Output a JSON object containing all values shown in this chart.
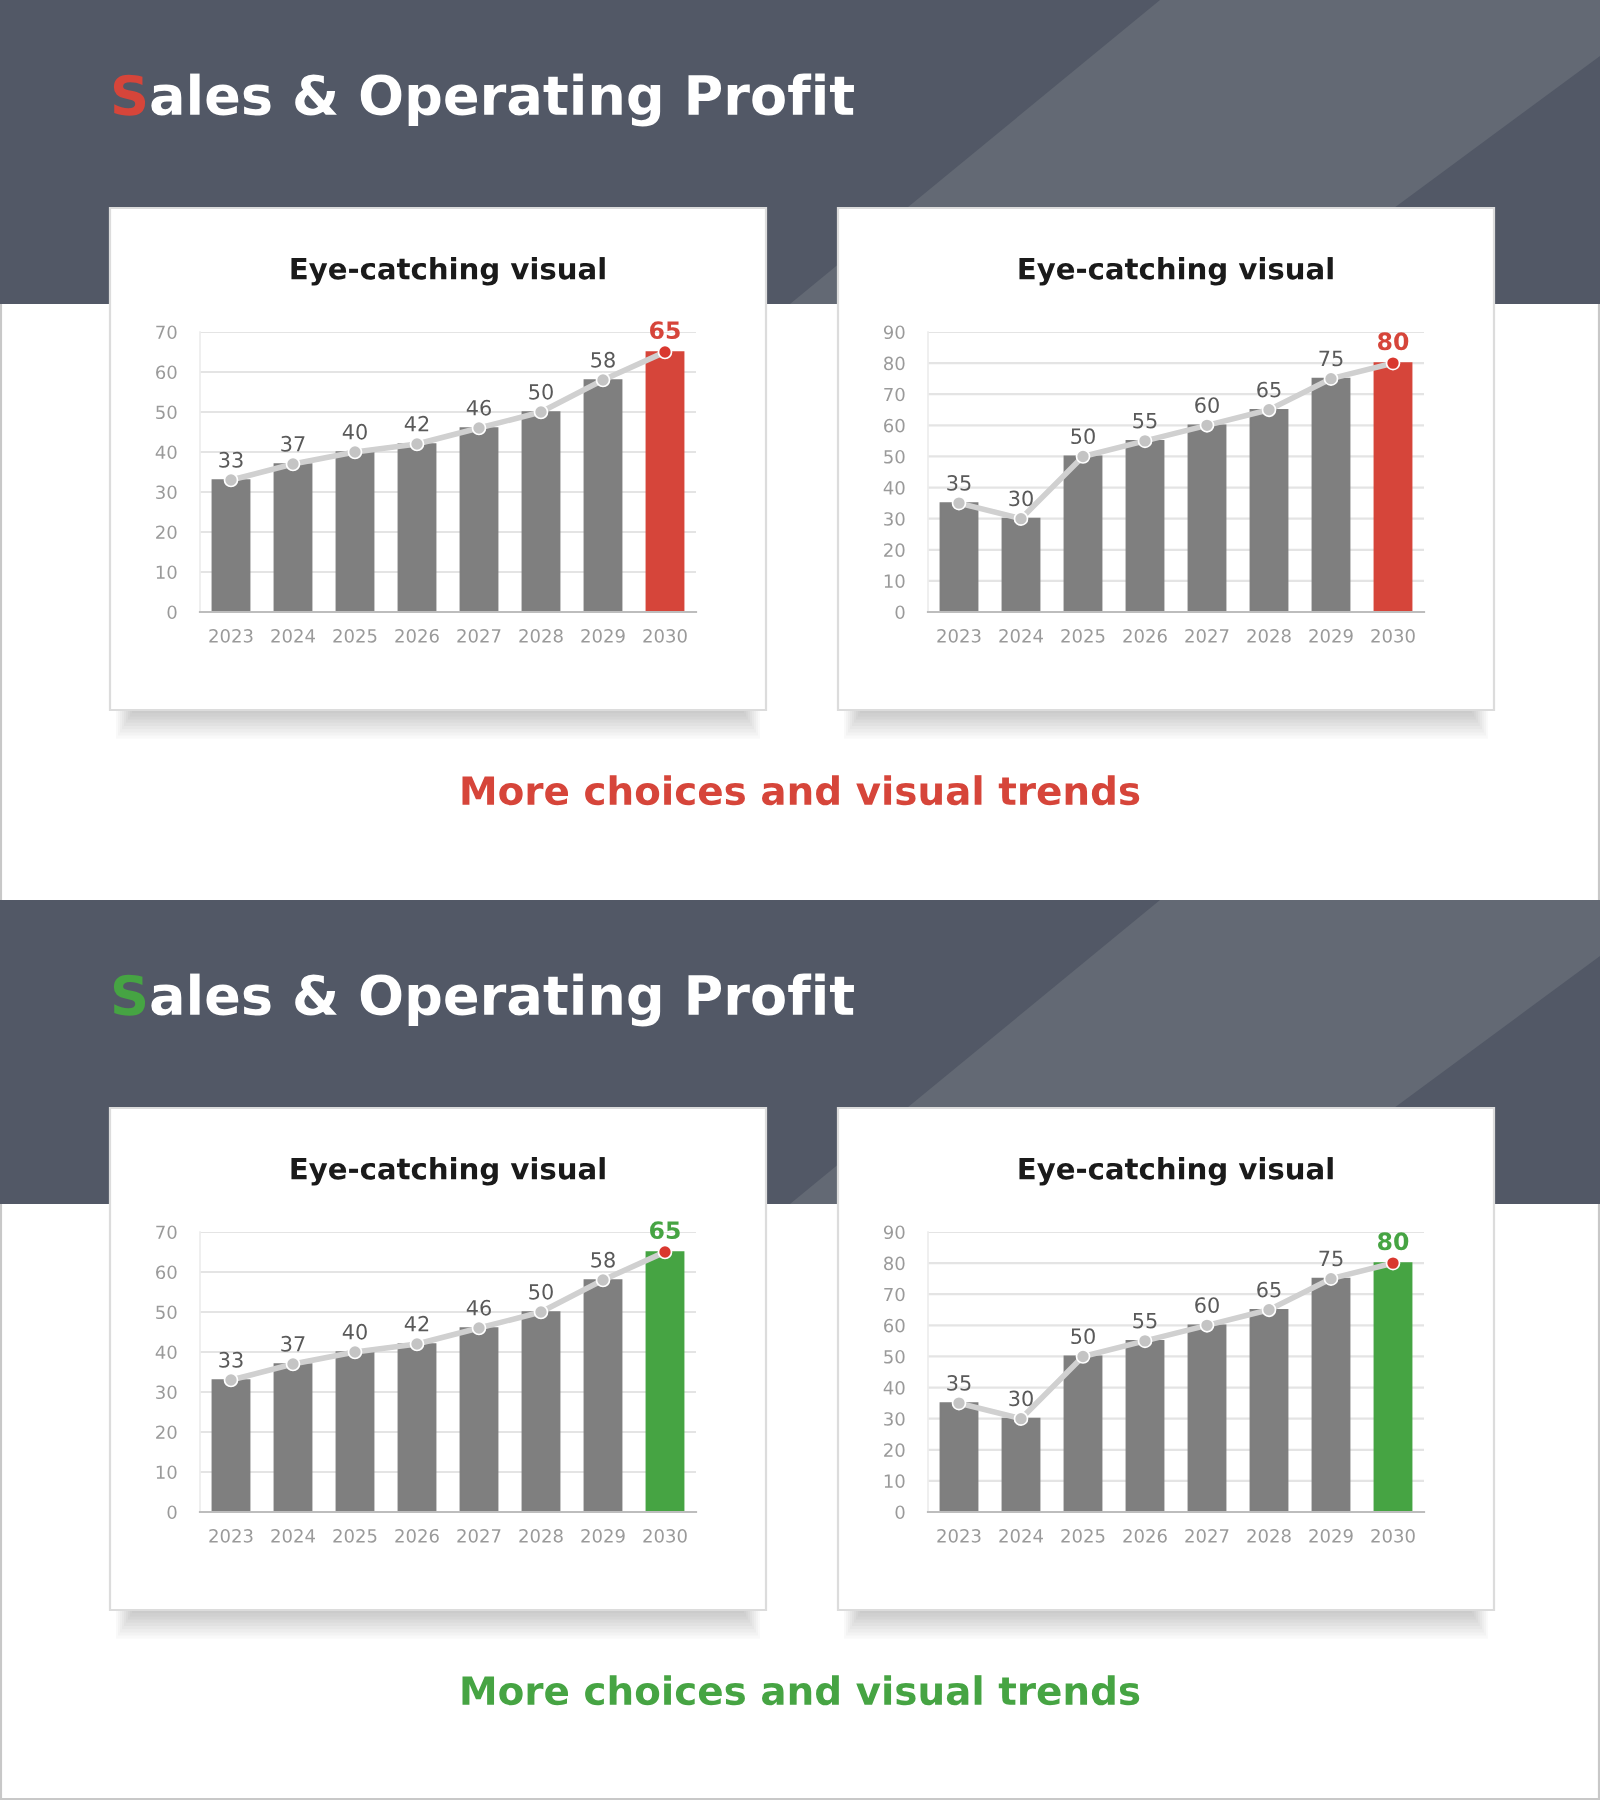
{
  "chart_data": [
    {
      "type": "bar",
      "title": "Eye-catching visual",
      "annotations": [
        "Sales & Operating Profit",
        "More choices and visual trends"
      ],
      "categories": [
        "2023",
        "2024",
        "2025",
        "2026",
        "2027",
        "2028",
        "2029",
        "2030"
      ],
      "series": [
        {
          "colors": [
            "#7f7f7f",
            "#7f7f7f",
            "#7f7f7f",
            "#7f7f7f",
            "#7f7f7f",
            "#7f7f7f",
            "#7f7f7f",
            "#d6453a"
          ],
          "values": [
            33,
            37,
            40,
            42,
            46,
            50,
            58,
            65
          ]
        },
        {
          "type": "line",
          "color": "#d0d0d0",
          "colors": [
            "#c4c4c4",
            "#c4c4c4",
            "#c4c4c4",
            "#c4c4c4",
            "#c4c4c4",
            "#c4c4c4",
            "#c4c4c4",
            "#d9382f"
          ],
          "values": [
            33,
            37,
            40,
            42,
            46,
            50,
            58,
            65
          ],
          "value_labels": [
            "33",
            "37",
            "40",
            "42",
            "46",
            "50",
            "58",
            "65"
          ]
        }
      ],
      "ylim": [
        0,
        70
      ],
      "yticks": [
        0,
        10,
        20,
        30,
        40,
        50,
        60,
        70
      ],
      "grid": "y",
      "marker": "circle"
    },
    {
      "type": "bar",
      "title": "Eye-catching visual",
      "categories": [
        "2023",
        "2024",
        "2025",
        "2026",
        "2027",
        "2028",
        "2029",
        "2030"
      ],
      "series": [
        {
          "colors": [
            "#7f7f7f",
            "#7f7f7f",
            "#7f7f7f",
            "#7f7f7f",
            "#7f7f7f",
            "#7f7f7f",
            "#7f7f7f",
            "#d6453a"
          ],
          "values": [
            35,
            30,
            50,
            55,
            60,
            65,
            75,
            80
          ]
        },
        {
          "type": "line",
          "color": "#d0d0d0",
          "colors": [
            "#c4c4c4",
            "#c4c4c4",
            "#c4c4c4",
            "#c4c4c4",
            "#c4c4c4",
            "#c4c4c4",
            "#c4c4c4",
            "#d9382f"
          ],
          "values": [
            35,
            30,
            50,
            55,
            60,
            65,
            75,
            80
          ],
          "value_labels": [
            "35",
            "30",
            "50",
            "55",
            "60",
            "65",
            "75",
            "80"
          ]
        }
      ],
      "ylim": [
        0,
        90
      ],
      "yticks": [
        0,
        10,
        20,
        30,
        40,
        50,
        60,
        70,
        80,
        90
      ],
      "grid": "y",
      "marker": "circle"
    },
    {
      "type": "bar",
      "title": "Eye-catching visual",
      "annotations": [
        "Sales & Operating Profit",
        "More choices and visual trends"
      ],
      "categories": [
        "2023",
        "2024",
        "2025",
        "2026",
        "2027",
        "2028",
        "2029",
        "2030"
      ],
      "series": [
        {
          "colors": [
            "#7f7f7f",
            "#7f7f7f",
            "#7f7f7f",
            "#7f7f7f",
            "#7f7f7f",
            "#7f7f7f",
            "#7f7f7f",
            "#46a443"
          ],
          "values": [
            33,
            37,
            40,
            42,
            46,
            50,
            58,
            65
          ]
        },
        {
          "type": "line",
          "color": "#d0d0d0",
          "colors": [
            "#c4c4c4",
            "#c4c4c4",
            "#c4c4c4",
            "#c4c4c4",
            "#c4c4c4",
            "#c4c4c4",
            "#c4c4c4",
            "#d9382f"
          ],
          "values": [
            33,
            37,
            40,
            42,
            46,
            50,
            58,
            65
          ],
          "value_labels": [
            "33",
            "37",
            "40",
            "42",
            "46",
            "50",
            "58",
            "65"
          ]
        }
      ],
      "ylim": [
        0,
        70
      ],
      "yticks": [
        0,
        10,
        20,
        30,
        40,
        50,
        60,
        70
      ],
      "grid": "y",
      "marker": "circle"
    },
    {
      "type": "bar",
      "title": "Eye-catching visual",
      "categories": [
        "2023",
        "2024",
        "2025",
        "2026",
        "2027",
        "2028",
        "2029",
        "2030"
      ],
      "series": [
        {
          "colors": [
            "#7f7f7f",
            "#7f7f7f",
            "#7f7f7f",
            "#7f7f7f",
            "#7f7f7f",
            "#7f7f7f",
            "#7f7f7f",
            "#46a443"
          ],
          "values": [
            35,
            30,
            50,
            55,
            60,
            65,
            75,
            80
          ]
        },
        {
          "type": "line",
          "color": "#d0d0d0",
          "colors": [
            "#c4c4c4",
            "#c4c4c4",
            "#c4c4c4",
            "#c4c4c4",
            "#c4c4c4",
            "#c4c4c4",
            "#c4c4c4",
            "#d9382f"
          ],
          "values": [
            35,
            30,
            50,
            55,
            60,
            65,
            75,
            80
          ],
          "value_labels": [
            "35",
            "30",
            "50",
            "55",
            "60",
            "65",
            "75",
            "80"
          ]
        }
      ],
      "ylim": [
        0,
        90
      ],
      "yticks": [
        0,
        10,
        20,
        30,
        40,
        50,
        60,
        70,
        80,
        90
      ],
      "grid": "y",
      "marker": "circle"
    }
  ]
}
